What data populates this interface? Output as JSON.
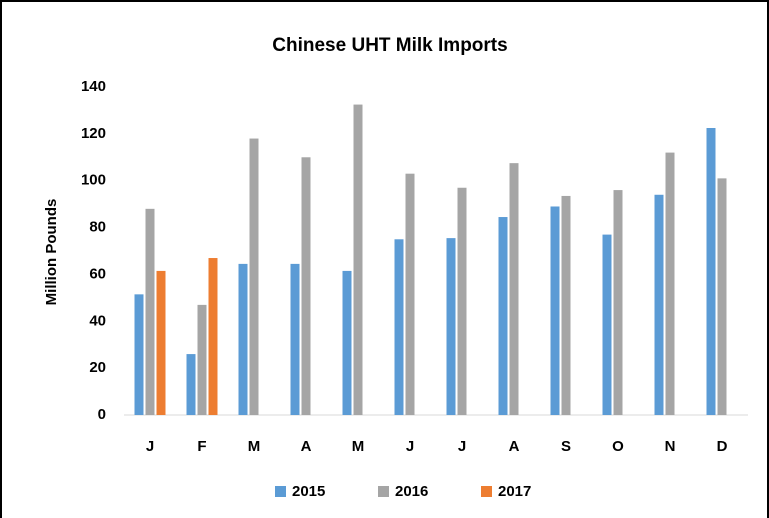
{
  "chart_data": {
    "type": "bar",
    "title": "Chinese UHT Milk Imports",
    "y_label": "Million Pounds",
    "categories": [
      "J",
      "F",
      "M",
      "A",
      "M",
      "J",
      "J",
      "A",
      "S",
      "O",
      "N",
      "D"
    ],
    "series": [
      {
        "name": "2015",
        "color": "#5b9bd5",
        "values": [
          51.5,
          26,
          64.5,
          64.5,
          61.5,
          75,
          75.5,
          84.5,
          89,
          77,
          94,
          122.5
        ]
      },
      {
        "name": "2016",
        "color": "#a5a5a5",
        "values": [
          88,
          47,
          118,
          110,
          132.5,
          103,
          97,
          107.5,
          93.5,
          96,
          112,
          101
        ]
      },
      {
        "name": "2017",
        "color": "#ed7d31",
        "values": [
          61.5,
          67,
          null,
          null,
          null,
          null,
          null,
          null,
          null,
          null,
          null,
          null
        ]
      }
    ],
    "ylim": [
      0,
      140
    ],
    "yticks": [
      0,
      20,
      40,
      60,
      80,
      100,
      120,
      140
    ],
    "legend": "bottom"
  }
}
